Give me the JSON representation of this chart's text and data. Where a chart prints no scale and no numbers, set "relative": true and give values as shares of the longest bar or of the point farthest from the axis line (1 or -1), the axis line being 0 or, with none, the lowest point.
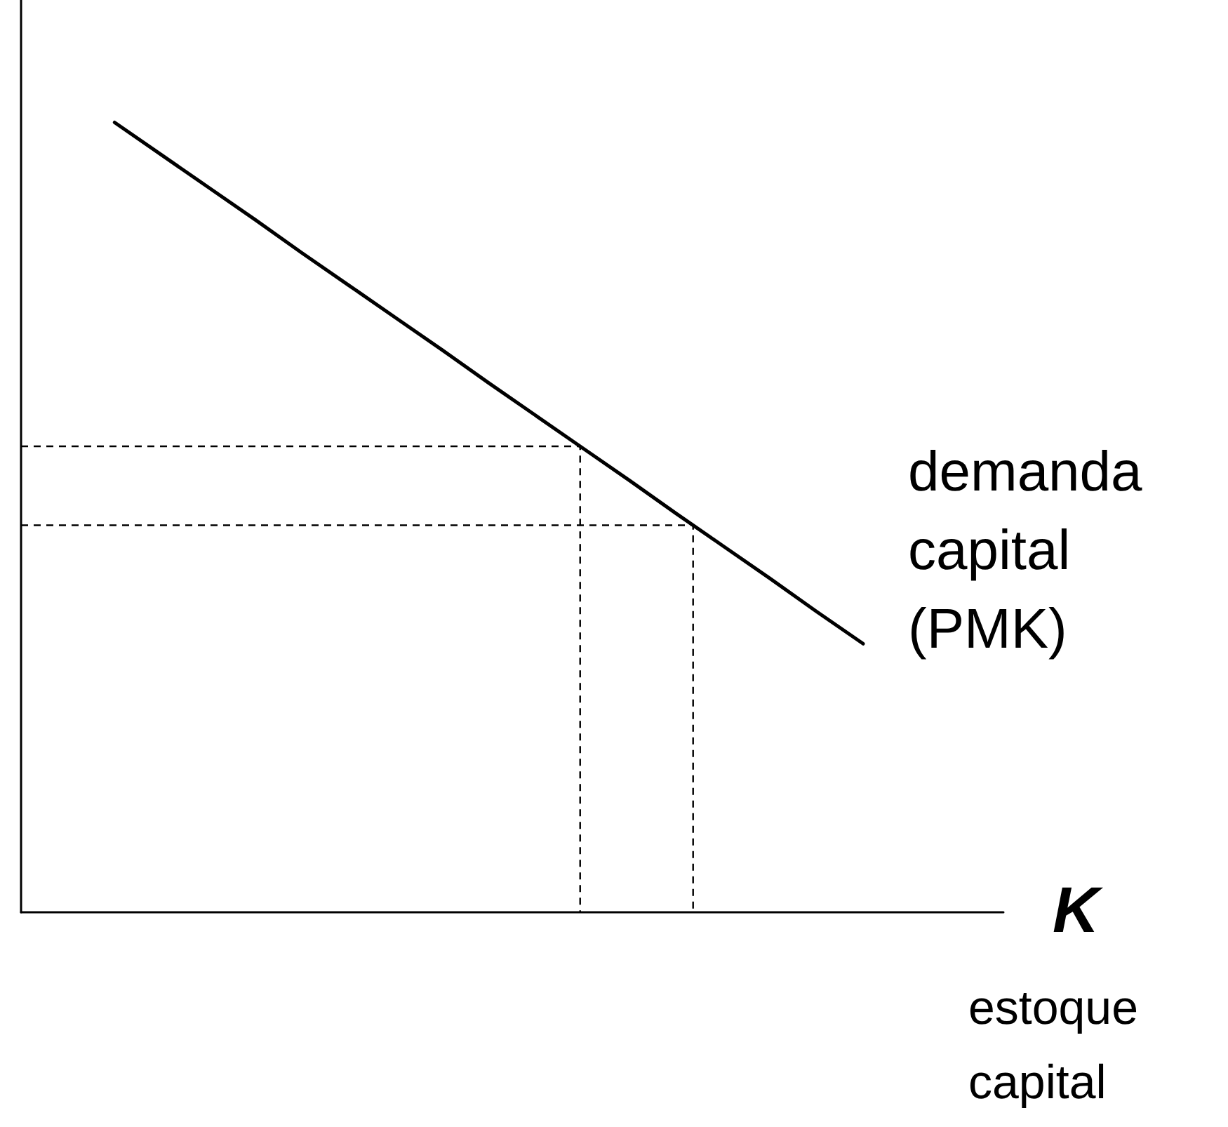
{
  "chart_data": {
    "type": "line",
    "relative": true,
    "xlabel": "K",
    "categories": [
      null,
      null,
      null,
      null,
      null,
      null,
      null,
      null,
      null,
      null,
      null,
      null,
      null,
      null,
      null,
      null,
      null,
      null,
      null,
      null,
      null,
      null
    ],
    "series": [
      {
        "name": "demanda capital (PMK)",
        "color": "#000000",
        "values": [
          null,
          null,
          1,
          0.959,
          0.918,
          0.877,
          0.835,
          0.794,
          0.753,
          0.712,
          0.67,
          0.629,
          0.588,
          0.547,
          0.505,
          0.464,
          0.423,
          0.381,
          0.34,
          null,
          null,
          null
        ]
      }
    ],
    "ref_lines": [
      {
        "axis": "y",
        "value": 0.59,
        "line_style": "dashed"
      },
      {
        "axis": "y",
        "value": 0.49,
        "line_style": "dashed"
      }
    ],
    "annotations": [
      "estoque capital"
    ],
    "marker": "none",
    "line_style": "solid",
    "grid": false,
    "legend": false
  }
}
